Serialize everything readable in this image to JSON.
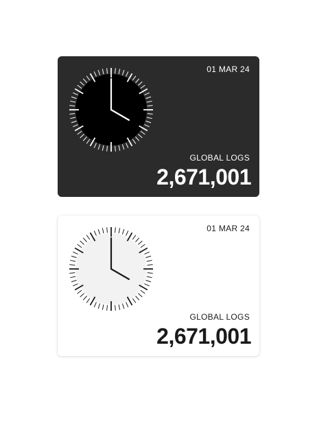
{
  "cards": [
    {
      "theme": "dark",
      "date": "01 MAR 24",
      "label": "GLOBAL LOGS",
      "value": "2,671,001",
      "clock": {
        "hours": 4,
        "minutes": 0
      },
      "colors": {
        "background": "#2b2b2b",
        "face": "#000000",
        "ticks": "#ffffff",
        "hands": "#ffffff"
      }
    },
    {
      "theme": "light",
      "date": "01 MAR 24",
      "label": "GLOBAL LOGS",
      "value": "2,671,001",
      "clock": {
        "hours": 4,
        "minutes": 0
      },
      "colors": {
        "background": "#ffffff",
        "face": "#f2f2f2",
        "ticks": "#1a1a1a",
        "hands": "#1a1a1a"
      }
    }
  ]
}
